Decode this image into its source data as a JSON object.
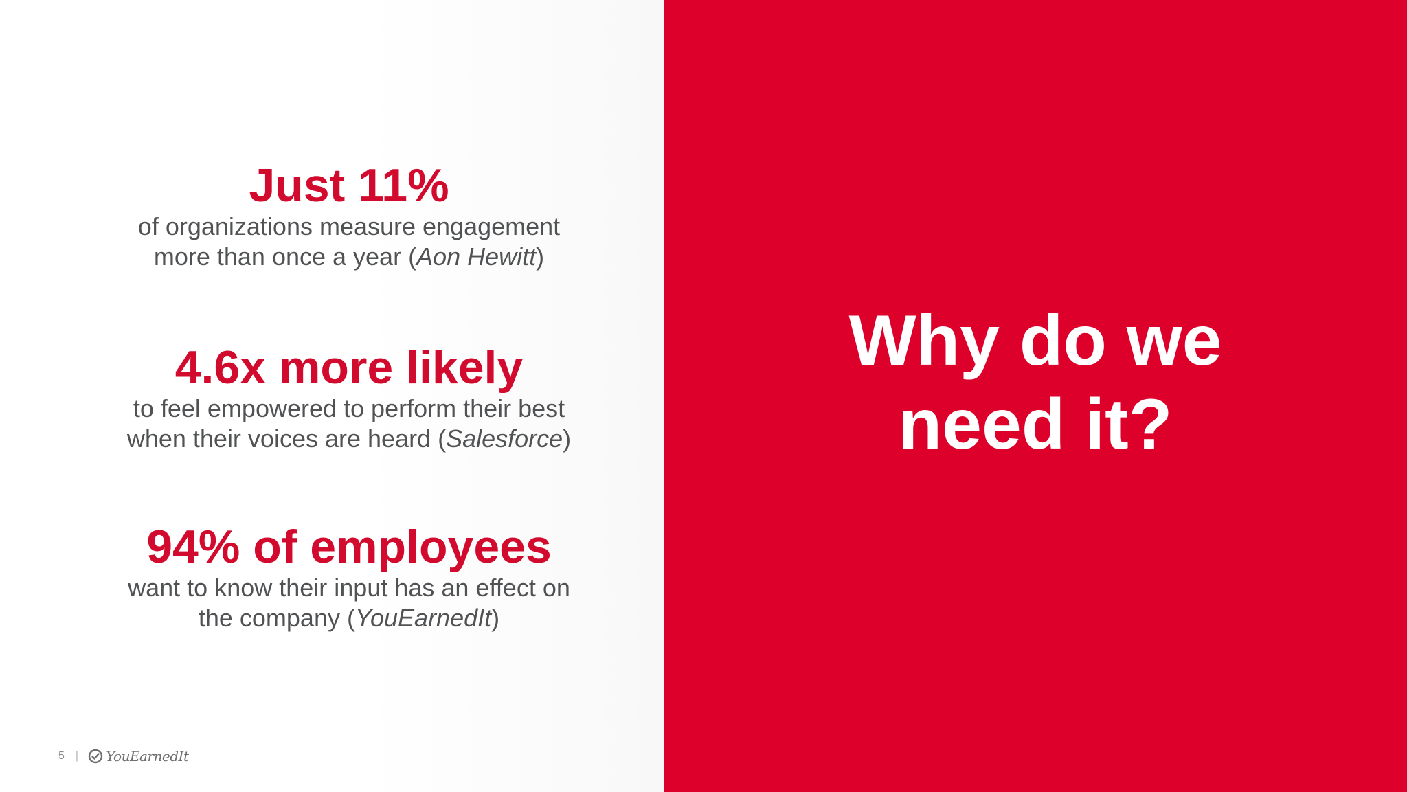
{
  "stats": [
    {
      "headline": "Just 11%",
      "line1": "of organizations measure engagement",
      "line2_prefix": "more than once a year (",
      "source": "Aon Hewitt",
      "line2_suffix": ")"
    },
    {
      "headline": "4.6x more likely",
      "line1": "to feel empowered to perform their best",
      "line2_prefix": "when their voices are heard (",
      "source": "Salesforce",
      "line2_suffix": ")"
    },
    {
      "headline": "94% of employees",
      "line1": "want to know their input has an effect on",
      "line2_prefix": "the company (",
      "source": "YouEarnedIt",
      "line2_suffix": ")"
    }
  ],
  "hero": {
    "line1": "Why do we",
    "line2": "need it?"
  },
  "footer": {
    "page_number": "5",
    "separator": "|",
    "logo_text": "YouEarnedIt"
  },
  "colors": {
    "accent_red": "#dc002b",
    "headline_red": "#d20a2e",
    "body_gray": "#505254"
  }
}
